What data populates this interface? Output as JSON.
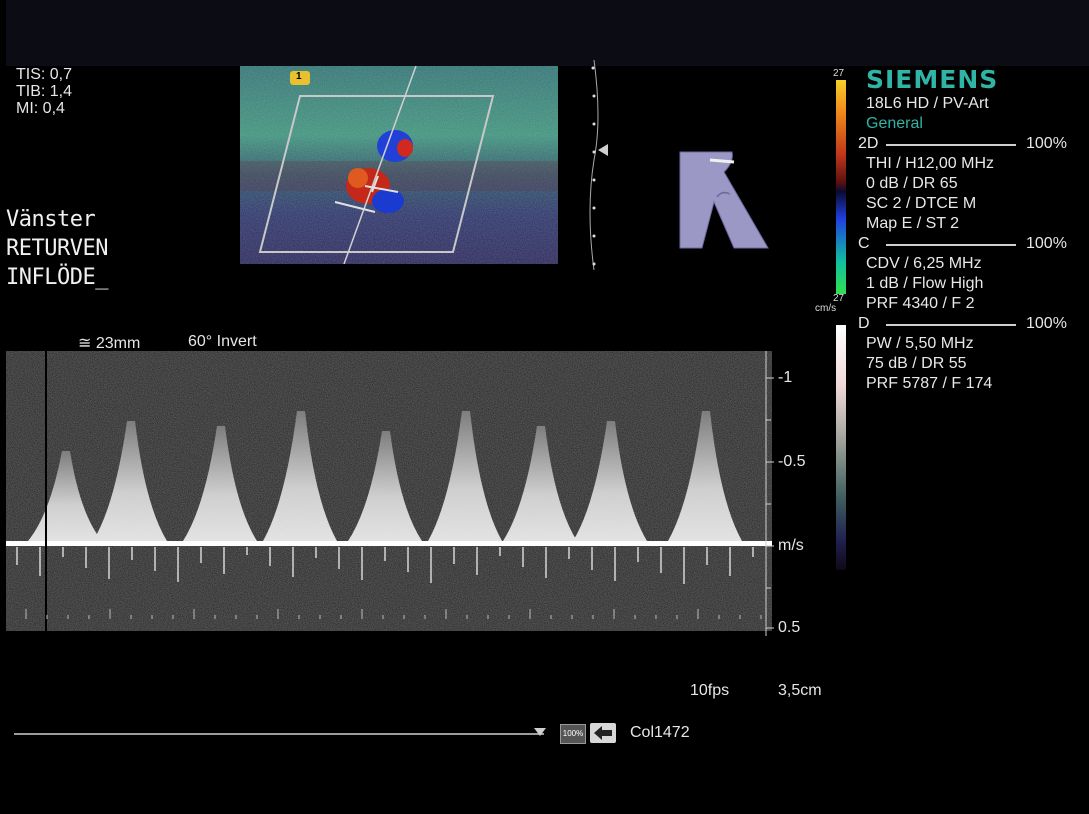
{
  "safety": {
    "tis": "TIS: 0,7",
    "tib": "TIB: 1,4",
    "mi": "MI:  0,4"
  },
  "annotation": {
    "line1": "Vänster",
    "line2": "RETURVEN",
    "line3": "INFLÖDE_"
  },
  "bmode": {
    "marker": "1"
  },
  "doppler_settings": {
    "gate": "≅ 23mm",
    "angle": "60° Invert"
  },
  "velocity_axis": {
    "label_top": "-1",
    "label_mid": "-0.5",
    "label_unit": "m/s",
    "label_bottom": "0.5"
  },
  "color_bar_top": {
    "top": "27",
    "bottom": "27",
    "unit": "cm/s"
  },
  "panel": {
    "brand": "SIEMENS",
    "probe": "18L6 HD / PV-Art",
    "preset": "General",
    "sec_2d": {
      "label": "2D",
      "pct": "100%",
      "lines": [
        "THI / H12,00 MHz",
        "0 dB / DR 65",
        "SC 2 / DTCE M",
        "Map E / ST 2"
      ]
    },
    "sec_c": {
      "label": "C",
      "pct": "100%",
      "lines": [
        "CDV / 6,25 MHz",
        "1 dB / Flow High",
        "PRF 4340 / F 2"
      ]
    },
    "sec_d": {
      "label": "D",
      "pct": "100%",
      "lines": [
        "PW / 5,50 MHz",
        "75 dB / DR 55",
        "PRF 5787 / F 174"
      ]
    }
  },
  "footer": {
    "fps": "10fps",
    "depth": "3,5cm",
    "zoom_badge": "100%",
    "clip_label": "Col1472"
  },
  "colors": {
    "brand": "#2fb4a6",
    "background": "#000000",
    "topbar": "#0b0c14"
  }
}
